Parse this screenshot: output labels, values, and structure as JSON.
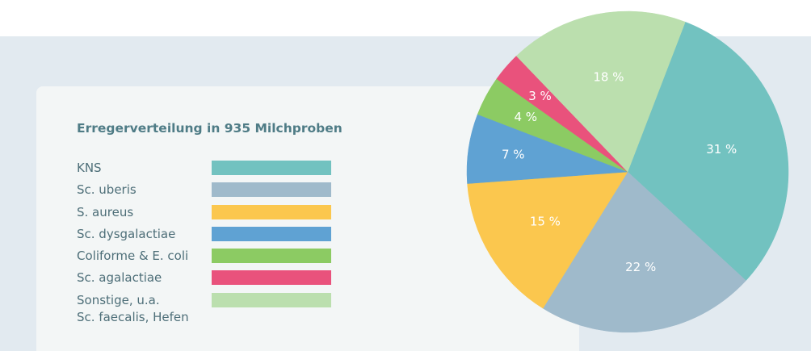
{
  "chart_data": {
    "type": "pie",
    "title": "Erregerverteilung in 935 Milchproben",
    "categories": [
      "KNS",
      "Sc. uberis",
      "S. aureus",
      "Sc. dysgalactiae",
      "Coliforme & E. coli",
      "Sc. agalactiae",
      "Sonstige, u.a.\nSc. faecalis, Hefen"
    ],
    "values": [
      31,
      22,
      15,
      7,
      4,
      3,
      18
    ],
    "value_labels": [
      "31 %",
      "22 %",
      "15 %",
      "7 %",
      "4 %",
      "3 %",
      "18 %"
    ],
    "colors": [
      "#72c2c0",
      "#9fbacb",
      "#fbc74e",
      "#5fa2d3",
      "#8ccb63",
      "#e9527c",
      "#bbdfae"
    ]
  }
}
